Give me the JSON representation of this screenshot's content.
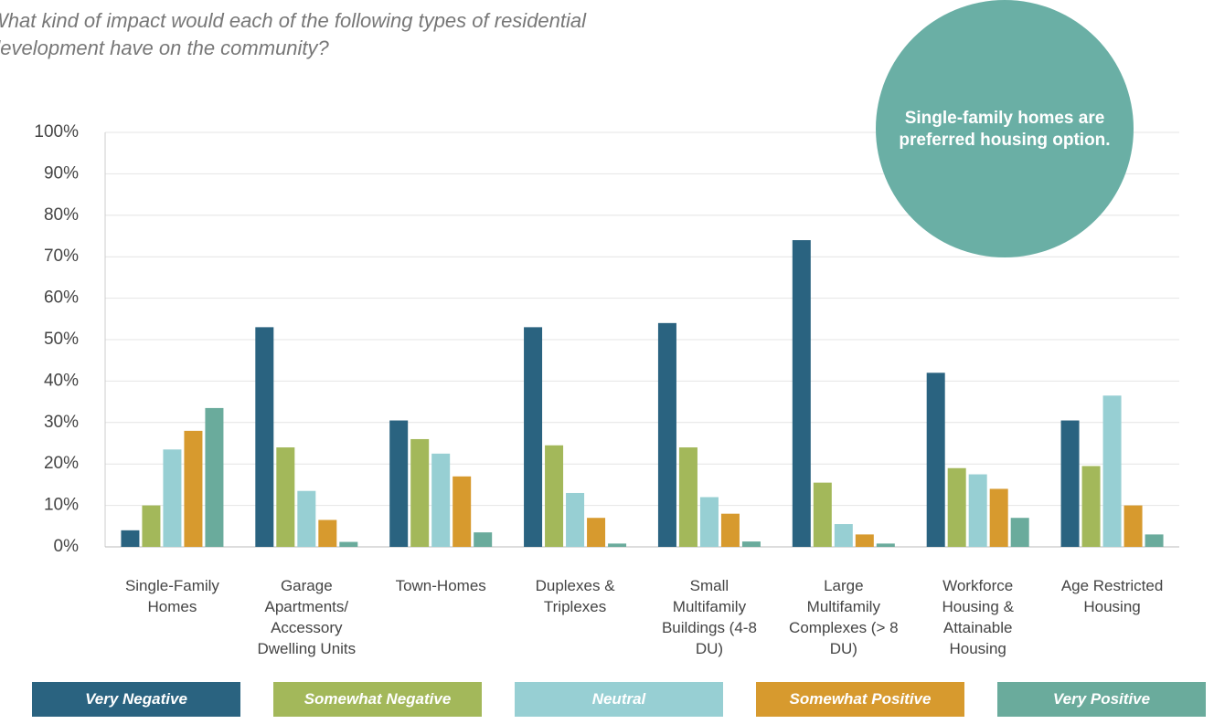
{
  "chart_data": {
    "type": "bar",
    "title": "What kind of impact would each of the following types of residential development have on the community?",
    "annotation": "Single-family homes are preferred housing option.",
    "categories": [
      "Single-Family Homes",
      "Garage Apartments/ Accessory Dwelling Units",
      "Town-Homes",
      "Duplexes & Triplexes",
      "Small Multifamily Buildings (4-8 DU)",
      "Large Multifamily Complexes (> 8 DU)",
      "Workforce Housing & Attainable Housing",
      "Age Restricted Housing"
    ],
    "series": [
      {
        "name": "Very Negative",
        "color": "#2a6380",
        "values": [
          4,
          53,
          30.5,
          53,
          54,
          74,
          42,
          30.5
        ]
      },
      {
        "name": "Somewhat Negative",
        "color": "#a3b85a",
        "values": [
          10,
          24,
          26,
          24.5,
          24,
          15.5,
          19,
          19.5
        ]
      },
      {
        "name": "Neutral",
        "color": "#97cfd3",
        "values": [
          23.5,
          13.5,
          22.5,
          13,
          12,
          5.5,
          17.5,
          36.5
        ]
      },
      {
        "name": "Somewhat Positive",
        "color": "#d79a2e",
        "values": [
          28,
          6.5,
          17,
          7,
          8,
          3,
          14,
          10
        ]
      },
      {
        "name": "Very Positive",
        "color": "#6aab9c",
        "values": [
          33.5,
          1.2,
          3.5,
          0.8,
          1.3,
          0.8,
          7,
          3
        ]
      }
    ],
    "ylim": [
      0,
      100
    ],
    "yticks": [
      {
        "value": 0,
        "label": "0%"
      },
      {
        "value": 10,
        "label": "10%"
      },
      {
        "value": 20,
        "label": "20%"
      },
      {
        "value": 30,
        "label": "30%"
      },
      {
        "value": 40,
        "label": "40%"
      },
      {
        "value": 50,
        "label": "50%"
      },
      {
        "value": 60,
        "label": "60%"
      },
      {
        "value": 70,
        "label": "70%"
      },
      {
        "value": 80,
        "label": "80%"
      },
      {
        "value": 90,
        "label": "90%"
      },
      {
        "value": 100,
        "label": "100%"
      }
    ],
    "grid": true,
    "legend": "bottom"
  }
}
